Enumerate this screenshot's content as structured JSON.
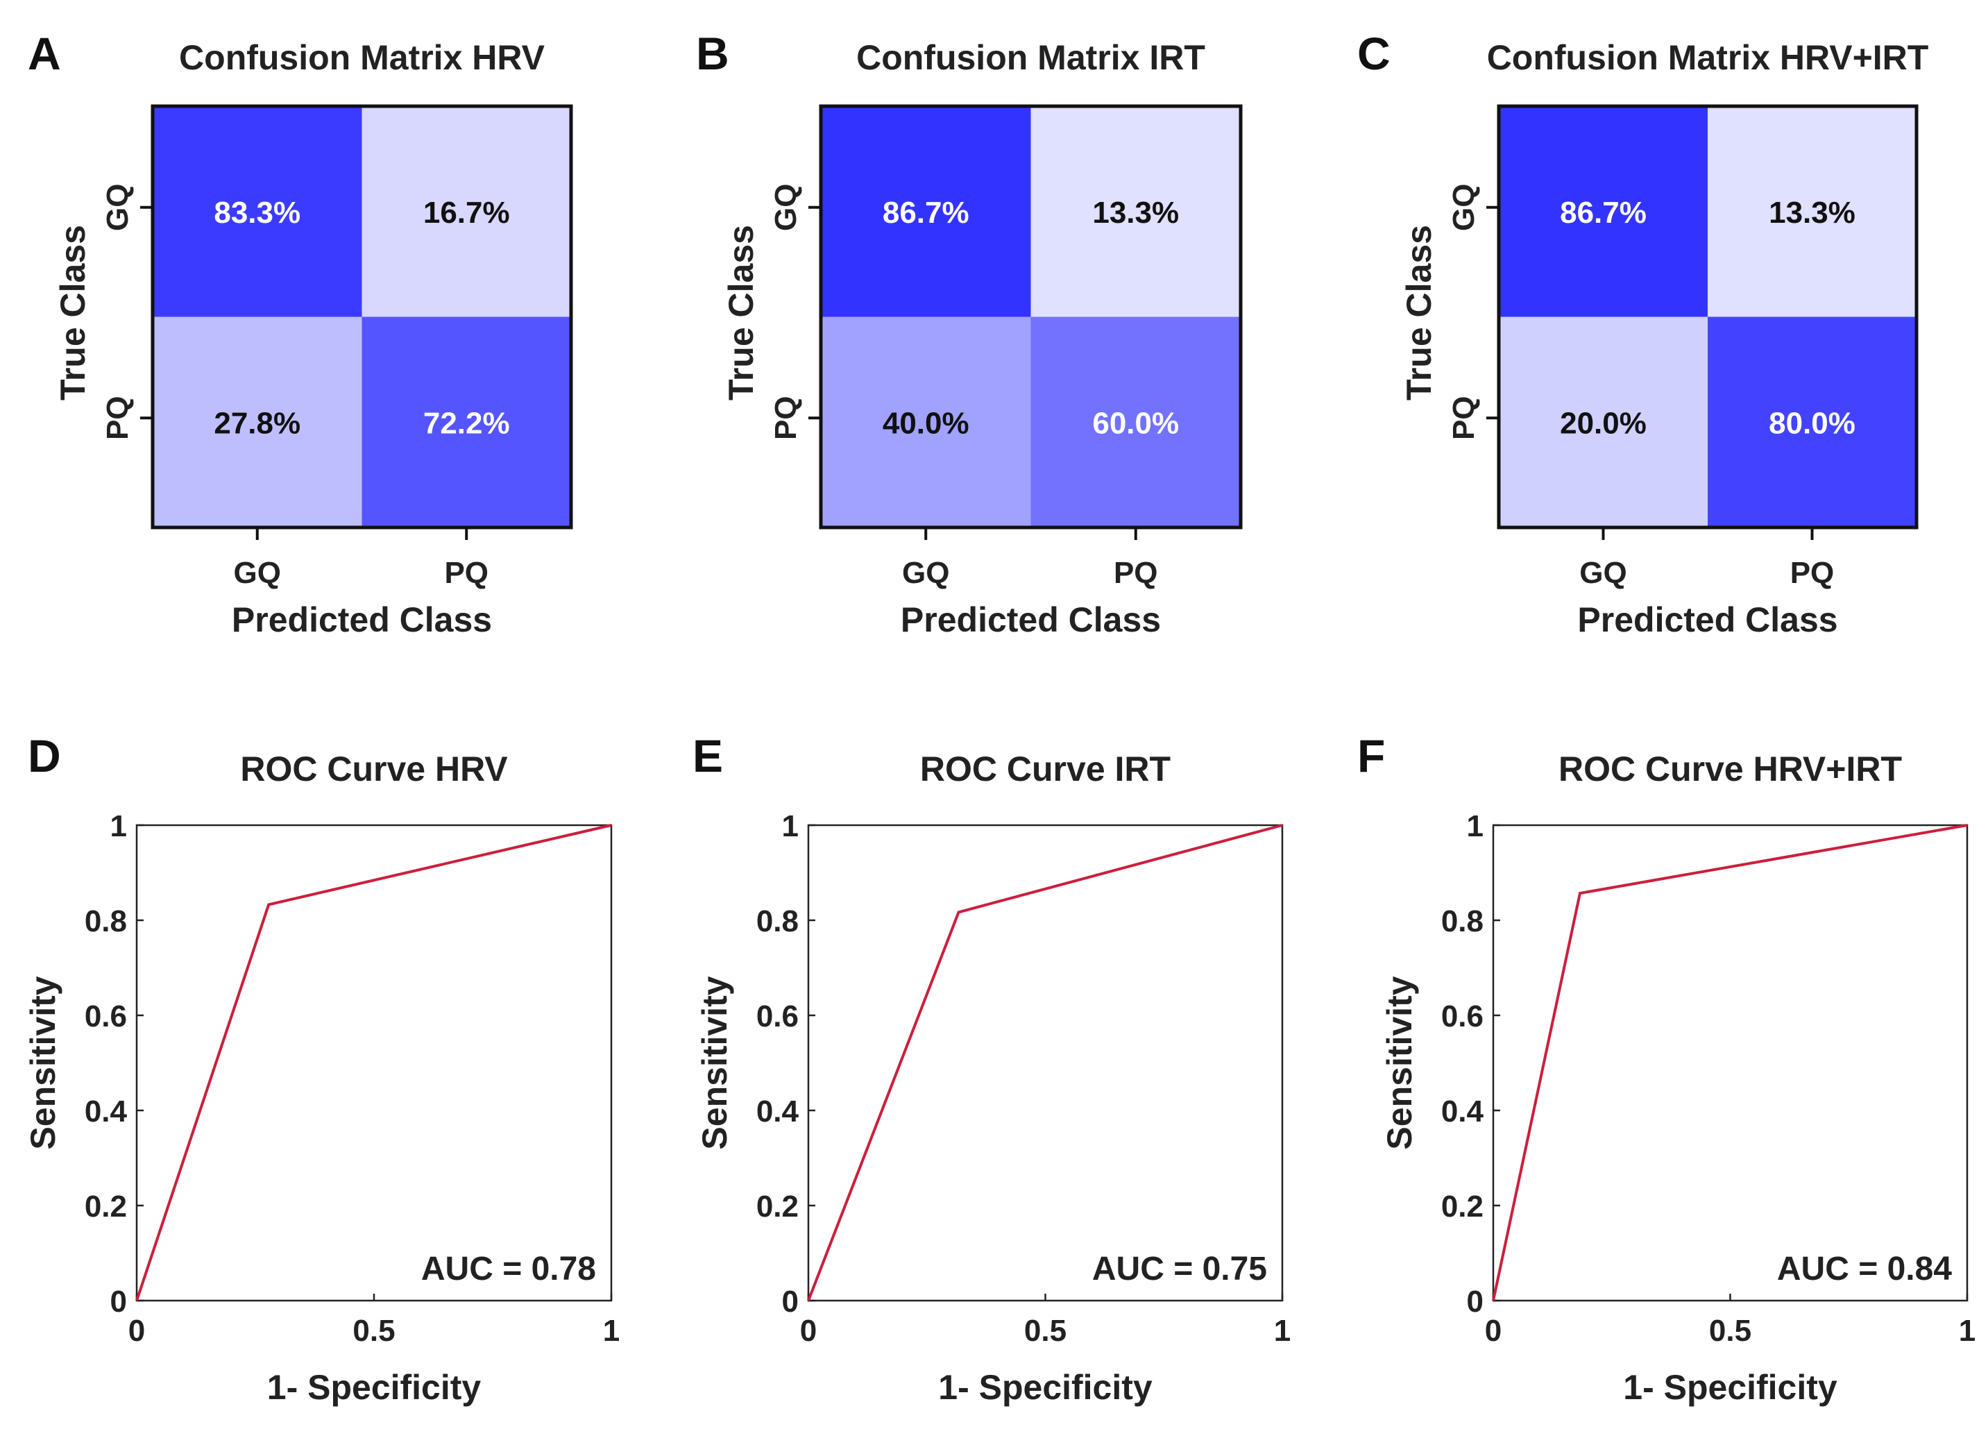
{
  "chart_data": [
    {
      "type": "heatmap",
      "panel": "A",
      "title": "Confusion Matrix HRV",
      "xlabel": "Predicted Class",
      "ylabel": "True Class",
      "x_categories": [
        "GQ",
        "PQ"
      ],
      "y_categories": [
        "GQ",
        "PQ"
      ],
      "values": [
        [
          83.3,
          16.7
        ],
        [
          27.8,
          72.2
        ]
      ],
      "labels": [
        [
          "83.3%",
          "16.7%"
        ],
        [
          "27.8%",
          "72.2%"
        ]
      ]
    },
    {
      "type": "heatmap",
      "panel": "B",
      "title": "Confusion Matrix IRT",
      "xlabel": "Predicted Class",
      "ylabel": "True Class",
      "x_categories": [
        "GQ",
        "PQ"
      ],
      "y_categories": [
        "GQ",
        "PQ"
      ],
      "values": [
        [
          86.7,
          13.3
        ],
        [
          40.0,
          60.0
        ]
      ],
      "labels": [
        [
          "86.7%",
          "13.3%"
        ],
        [
          "40.0%",
          "60.0%"
        ]
      ]
    },
    {
      "type": "heatmap",
      "panel": "C",
      "title": "Confusion Matrix HRV+IRT",
      "xlabel": "Predicted Class",
      "ylabel": "True Class",
      "x_categories": [
        "GQ",
        "PQ"
      ],
      "y_categories": [
        "GQ",
        "PQ"
      ],
      "values": [
        [
          86.7,
          13.3
        ],
        [
          20.0,
          80.0
        ]
      ],
      "labels": [
        [
          "86.7%",
          "13.3%"
        ],
        [
          "20.0%",
          "80.0%"
        ]
      ]
    },
    {
      "type": "line",
      "panel": "D",
      "title": "ROC Curve HRV",
      "xlabel": "1- Specificity",
      "ylabel": "Sensitivity",
      "x": [
        0,
        0.278,
        1
      ],
      "y": [
        0,
        0.833,
        1
      ],
      "xlim": [
        0,
        1
      ],
      "ylim": [
        0,
        1
      ],
      "xticks": [
        "0",
        "0.5",
        "1"
      ],
      "yticks": [
        "0",
        "0.2",
        "0.4",
        "0.6",
        "0.8",
        "1"
      ],
      "annotation": "AUC = 0.78",
      "color": "#cc1f3c"
    },
    {
      "type": "line",
      "panel": "E",
      "title": "ROC Curve IRT",
      "xlabel": "1- Specificity",
      "ylabel": "Sensitivity",
      "x": [
        0,
        0.317,
        1
      ],
      "y": [
        0,
        0.817,
        1
      ],
      "xlim": [
        0,
        1
      ],
      "ylim": [
        0,
        1
      ],
      "xticks": [
        "0",
        "0.5",
        "1"
      ],
      "yticks": [
        "0",
        "0.2",
        "0.4",
        "0.6",
        "0.8",
        "1"
      ],
      "annotation": "AUC = 0.75",
      "color": "#cc1f3c"
    },
    {
      "type": "line",
      "panel": "F",
      "title": "ROC Curve HRV+IRT",
      "xlabel": "1- Specificity",
      "ylabel": "Sensitivity",
      "x": [
        0,
        0.183,
        1
      ],
      "y": [
        0,
        0.857,
        1
      ],
      "xlim": [
        0,
        1
      ],
      "ylim": [
        0,
        1
      ],
      "xticks": [
        "0",
        "0.5",
        "1"
      ],
      "yticks": [
        "0",
        "0.2",
        "0.4",
        "0.6",
        "0.8",
        "1"
      ],
      "annotation": "AUC = 0.84",
      "color": "#cc1f3c"
    }
  ]
}
